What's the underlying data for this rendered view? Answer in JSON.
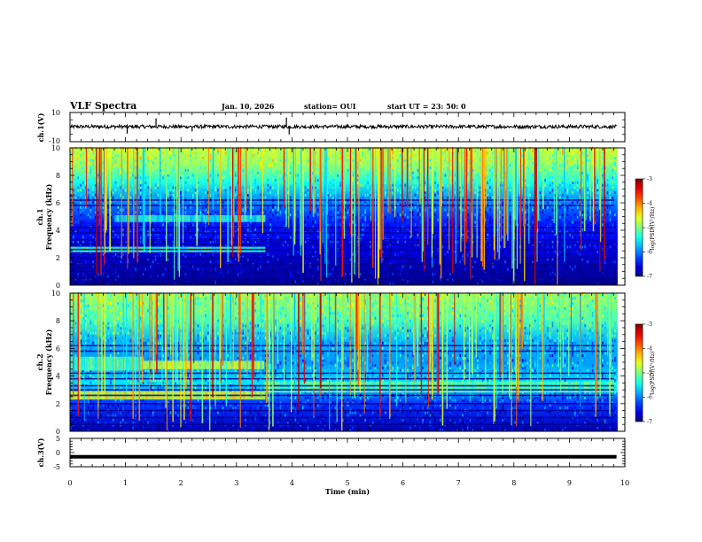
{
  "header": {
    "title": "VLF Spectra",
    "date": "Jan. 10, 2026",
    "station": "station= OUI",
    "start_ut": "start  UT =  23: 50: 0"
  },
  "chart_data": [
    {
      "type": "line",
      "ylabel": "ch.1(V)",
      "xlim": [
        0,
        10
      ],
      "ylim": [
        -10,
        10
      ],
      "yticks": [
        10,
        -10
      ],
      "baseline": 0.3,
      "noise_amplitude": 1.2,
      "spikes": [
        {
          "x": 1.03,
          "y": -4.5
        },
        {
          "x": 1.55,
          "y": 6.0
        },
        {
          "x": 2.2,
          "y": -3.0
        },
        {
          "x": 3.9,
          "y": 6.5
        },
        {
          "x": 3.95,
          "y": -5.0
        }
      ]
    },
    {
      "type": "heatmap",
      "channel_label": "ch.1",
      "ylabel": "Frequency (kHz)",
      "xlim": [
        0,
        10
      ],
      "ylim": [
        0,
        10
      ],
      "yticks": [
        0,
        2,
        4,
        6,
        8,
        10
      ],
      "colorbar": {
        "label": "log(PSD)(V²/Hz)",
        "range": [
          -7,
          -3
        ],
        "ticks": [
          -3,
          -4,
          -5,
          -6,
          -7
        ]
      },
      "bands_kHz": [
        0.5,
        1.0,
        1.5,
        2.0,
        2.6,
        3.0,
        3.3,
        3.8,
        4.2,
        5.8,
        6.2
      ],
      "emission_bands": [
        {
          "x_range": [
            0.0,
            3.5
          ],
          "f_range_kHz": [
            2.4,
            2.8
          ],
          "log_psd": -5.3
        },
        {
          "x_range": [
            0.8,
            3.5
          ],
          "f_range_kHz": [
            4.6,
            5.1
          ],
          "log_psd": -5.5
        }
      ]
    },
    {
      "type": "heatmap",
      "channel_label": "ch.2",
      "ylabel": "Frequency (kHz)",
      "xlim": [
        0,
        10
      ],
      "ylim": [
        0,
        10
      ],
      "yticks": [
        0,
        2,
        4,
        6,
        8,
        10
      ],
      "colorbar": {
        "label": "log(PSD)(V²/Hz)",
        "range": [
          -7,
          -3
        ],
        "ticks": [
          -3,
          -4,
          -5,
          -6,
          -7
        ]
      },
      "bands_kHz": [
        0.5,
        1.0,
        1.5,
        2.0,
        2.6,
        3.0,
        3.3,
        3.8,
        4.2,
        5.8,
        6.2
      ],
      "emission_bands": [
        {
          "x_range": [
            0.0,
            3.5
          ],
          "f_range_kHz": [
            2.3,
            2.9
          ],
          "log_psd": -4.6
        },
        {
          "x_range": [
            1.3,
            3.5
          ],
          "f_range_kHz": [
            4.5,
            5.1
          ],
          "log_psd": -4.7
        },
        {
          "x_range": [
            0.0,
            1.3
          ],
          "f_range_kHz": [
            4.4,
            5.4
          ],
          "log_psd": -5.2
        },
        {
          "x_range": [
            3.5,
            10.0
          ],
          "f_range_kHz": [
            2.8,
            3.6
          ],
          "log_psd": -5.2
        }
      ]
    },
    {
      "type": "line",
      "ylabel": "ch.3(V)",
      "xlabel": "Time (min)",
      "xlim": [
        0,
        10
      ],
      "ylim": [
        -5,
        5
      ],
      "yticks": [
        5,
        0,
        -5
      ],
      "xticks": [
        0,
        1,
        2,
        3,
        4,
        5,
        6,
        7,
        8,
        9,
        10
      ],
      "baseline": -1.5
    }
  ]
}
